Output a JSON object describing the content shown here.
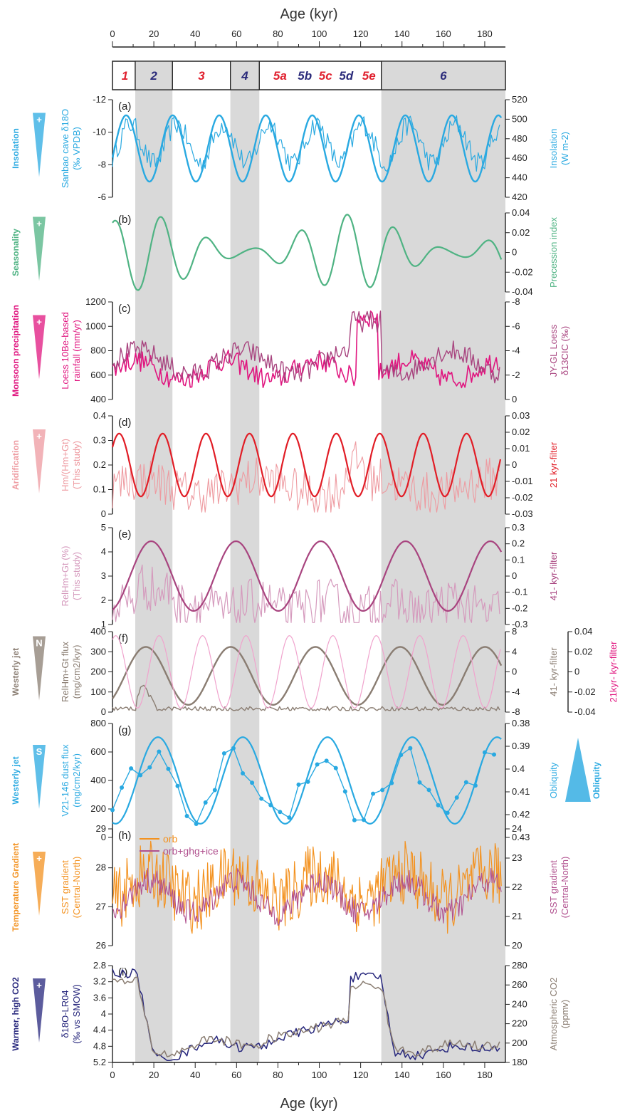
{
  "figure": {
    "top_axis_title": "Age (kyr)",
    "bottom_axis_title": "Age (kyr)",
    "age_ticks": [
      0,
      20,
      40,
      60,
      80,
      100,
      120,
      140,
      160,
      180
    ],
    "colors": {
      "axis": "#222222",
      "shade": "#d9d9d9",
      "mis_warm": "#e0202e",
      "mis_cold": "#2a2a7a",
      "insolation": "#29a9e1",
      "seasonality": "#4fb383",
      "monsoon": "#e0157f",
      "monsoon_alt": "#a8447f",
      "aridification": "#e11d26",
      "aridification_light": "#ee9aa0",
      "relhm": "#a8447f",
      "relhm_light": "#d59abd",
      "westerly_n": "#8a7d72",
      "filter_pink": "#f0a3cd",
      "westerly_s": "#29a9e1",
      "orb": "#f39220",
      "orb_ghg": "#b0508e",
      "co2": "#8a7d72",
      "d18o": "#26267c"
    }
  },
  "mis": {
    "shaded_ranges": [
      [
        11,
        29
      ],
      [
        57,
        71
      ],
      [
        130,
        190
      ]
    ],
    "stages": [
      {
        "label": "1",
        "age": 6,
        "warm": true
      },
      {
        "label": "2",
        "age": 20,
        "warm": false
      },
      {
        "label": "3",
        "age": 43,
        "warm": true
      },
      {
        "label": "4",
        "age": 64,
        "warm": false
      },
      {
        "label": "5a",
        "age": 81,
        "warm": true
      },
      {
        "label": "5b",
        "age": 93,
        "warm": false
      },
      {
        "label": "5c",
        "age": 103,
        "warm": true
      },
      {
        "label": "5d",
        "age": 113,
        "warm": false
      },
      {
        "label": "5e",
        "age": 124,
        "warm": true
      },
      {
        "label": "6",
        "age": 160,
        "warm": false
      }
    ]
  },
  "chart_data": [
    {
      "panel": "(a)",
      "type": "line",
      "left_label": "Sanbao cave δ18O",
      "left_label_sub": "(‰ VPDB)",
      "left_ticks": [
        "-12",
        "-10",
        "-8",
        "-6"
      ],
      "right_label": "Insolation",
      "right_label_sub": "(W m-2)",
      "right_ticks": [
        "520",
        "500",
        "480",
        "460",
        "440",
        "420"
      ],
      "proxy": "Insolation",
      "proxy_sign": "+",
      "series": [
        {
          "name": "Sanbao cave δ18O",
          "kind": "noisy"
        },
        {
          "name": "Insolation",
          "kind": "smooth",
          "min": 440,
          "max": 510
        }
      ]
    },
    {
      "panel": "(b)",
      "type": "line",
      "right_label": "Precession index",
      "right_ticks": [
        "0.04",
        "0.02",
        "0",
        "-0.02",
        "-0.04"
      ],
      "proxy": "Seasonality",
      "proxy_sign": "+",
      "series": [
        {
          "name": "Precession index",
          "kind": "precession",
          "min": -0.04,
          "max": 0.04
        }
      ]
    },
    {
      "panel": "(c)",
      "type": "line",
      "left_label": "Loess 10Be-based",
      "left_label_sub": "rainfall (mm/yr)",
      "left_ticks": [
        "1200",
        "1000",
        "800",
        "600",
        "400"
      ],
      "right_label": "JY-GL Loess",
      "right_label_sub": "δ13CIC (‰)",
      "right_ticks": [
        "-8",
        "-6",
        "-4",
        "-2",
        "0"
      ],
      "proxy": "Monsoon precipitation",
      "proxy_sign": "+",
      "series": [
        {
          "name": "Loess 10Be-based rainfall",
          "kind": "noisy"
        },
        {
          "name": "JY-GL Loess δ13CIC",
          "kind": "noisy"
        }
      ]
    },
    {
      "panel": "(d)",
      "type": "line",
      "left_label": "Hm/(Hm+Gt)",
      "left_label_sub": "(This study)",
      "left_ticks": [
        "0.4",
        "0.3",
        "0.2",
        "0.1",
        "0"
      ],
      "right_label": "21 kyr-filter",
      "right_ticks": [
        "0.03",
        "0.02",
        "0.01",
        "0",
        "-0.01",
        "-0.02",
        "-0.03"
      ],
      "proxy": "Aridification",
      "proxy_sign": "+",
      "series": [
        {
          "name": "Hm/(Hm+Gt)",
          "kind": "noisy"
        },
        {
          "name": "21 kyr-filter",
          "kind": "sine",
          "period": 21
        }
      ]
    },
    {
      "panel": "(e)",
      "type": "line",
      "left_label": "RelHm+Gt (%)",
      "left_label_sub": "(This study)",
      "left_ticks": [
        "5",
        "4",
        "3",
        "2",
        "1"
      ],
      "right_label": "41- kyr-filter",
      "right_ticks": [
        "0.3",
        "0.2",
        "0.1",
        "0",
        "-0.1",
        "-0.2",
        "-0.3"
      ],
      "series": [
        {
          "name": "RelHm+Gt",
          "kind": "noisy"
        },
        {
          "name": "41- kyr-filter",
          "kind": "sine",
          "period": 41
        }
      ]
    },
    {
      "panel": "(f)",
      "type": "line",
      "left_label": "RelHm+Gt flux",
      "left_label_sub": "(mg/cm2/kyr)",
      "left_ticks": [
        "400",
        "300",
        "200",
        "100",
        "0"
      ],
      "right_label": "41- kyr-filter",
      "right_ticks": [
        "8",
        "4",
        "0",
        "-4",
        "-8"
      ],
      "far_right_label": "21kyr- kyr-filter",
      "far_right_ticks": [
        "0.04",
        "0.02",
        "0",
        "-0.02",
        "-0.04"
      ],
      "proxy": "Westerly jet",
      "proxy_sign": "N",
      "series": [
        {
          "name": "RelHm+Gt flux",
          "kind": "spiky"
        },
        {
          "name": "41- kyr-filter",
          "kind": "sine",
          "period": 41
        },
        {
          "name": "21kyr- kyr-filter",
          "kind": "sine",
          "period": 21
        }
      ]
    },
    {
      "panel": "(g)",
      "type": "line",
      "left_label": "V21-146 dust flux",
      "left_label_sub": "(mg/cm2/kyr)",
      "left_ticks": [
        "800",
        "600",
        "400",
        "200",
        "0"
      ],
      "right_label": "Obliquity",
      "right_ticks": [
        "0.38",
        "0.39",
        "0.4",
        "0.41",
        "0.42",
        "0.43"
      ],
      "proxy": "Westerly jet",
      "proxy_sign": "S",
      "proxy_right": "Obliquity",
      "series": [
        {
          "name": "V21-146 dust flux",
          "kind": "points"
        },
        {
          "name": "Obliquity",
          "kind": "sine",
          "period": 41
        }
      ]
    },
    {
      "panel": "(h)",
      "type": "line",
      "left_label": "SST gradient",
      "left_label_sub": "(Central-North)",
      "left_ticks": [
        "29",
        "28",
        "27",
        "26"
      ],
      "right_label": "SST gradient",
      "right_label_sub": "(Central-North)",
      "right_ticks": [
        "24",
        "23",
        "22",
        "21",
        "20"
      ],
      "proxy": "Temperature Gradient",
      "proxy_sign": "+",
      "series": [
        {
          "name": "orb",
          "kind": "noisy"
        },
        {
          "name": "orb+ghg+ice",
          "kind": "noisy"
        }
      ]
    },
    {
      "panel": "(i)",
      "type": "line",
      "left_label": "δ18O-LR04",
      "left_label_sub": "(‰ vs SMOW)",
      "left_ticks": [
        "2.8",
        "3.2",
        "3.6",
        "4",
        "4.4",
        "4.8",
        "5.2"
      ],
      "right_label": "Atmospheric CO2",
      "right_label_sub": "(ppmv)",
      "right_ticks": [
        "280",
        "260",
        "240",
        "220",
        "200",
        "180"
      ],
      "proxy": "Warmer, high CO2",
      "proxy_sign": "+",
      "series": [
        {
          "name": "δ18O-LR04",
          "kind": "glacial"
        },
        {
          "name": "Atmospheric CO2",
          "kind": "glacial"
        }
      ]
    }
  ]
}
